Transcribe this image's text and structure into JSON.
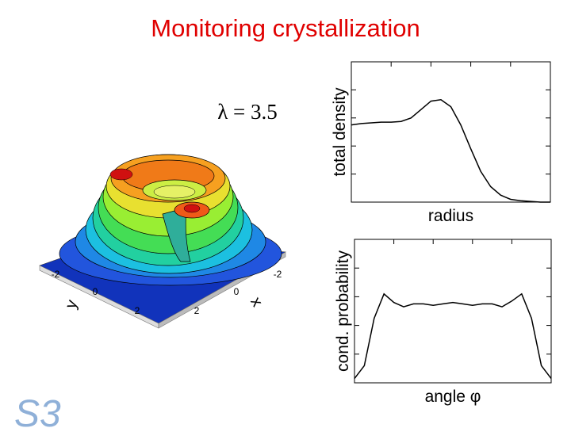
{
  "title": "Monitoring crystallization",
  "subtitle": "λ = 3.5",
  "surface": {
    "x_label": "x",
    "y_label": "y",
    "x_tick_labels": [
      "-2",
      "0",
      "2"
    ],
    "y_tick_labels": [
      "-2",
      "0",
      "2"
    ]
  },
  "logo": "S3",
  "chart_data": [
    {
      "type": "line",
      "ylabel": "total density",
      "xlabel": "radius",
      "color": "#000000",
      "x": [
        0,
        0.05,
        0.1,
        0.15,
        0.2,
        0.25,
        0.3,
        0.35,
        0.4,
        0.45,
        0.5,
        0.55,
        0.6,
        0.65,
        0.7,
        0.75,
        0.8,
        0.85,
        0.9,
        0.95,
        1
      ],
      "values": [
        0.55,
        0.56,
        0.565,
        0.57,
        0.57,
        0.575,
        0.6,
        0.66,
        0.72,
        0.73,
        0.68,
        0.55,
        0.38,
        0.22,
        0.11,
        0.05,
        0.02,
        0.01,
        0.005,
        0,
        0
      ],
      "xlim": [
        0,
        1
      ],
      "ylim": [
        0,
        1
      ]
    },
    {
      "type": "line",
      "ylabel": "cond. probability",
      "xlabel": "angle φ",
      "color": "#000000",
      "x": [
        0,
        0.05,
        0.1,
        0.15,
        0.2,
        0.25,
        0.3,
        0.35,
        0.4,
        0.45,
        0.5,
        0.55,
        0.6,
        0.65,
        0.7,
        0.75,
        0.8,
        0.85,
        0.9,
        0.95,
        1
      ],
      "values": [
        0.03,
        0.12,
        0.45,
        0.62,
        0.56,
        0.53,
        0.55,
        0.55,
        0.54,
        0.55,
        0.56,
        0.55,
        0.54,
        0.55,
        0.55,
        0.53,
        0.57,
        0.62,
        0.45,
        0.12,
        0.03
      ],
      "xlim": [
        0,
        1
      ],
      "ylim": [
        0,
        1
      ]
    }
  ]
}
